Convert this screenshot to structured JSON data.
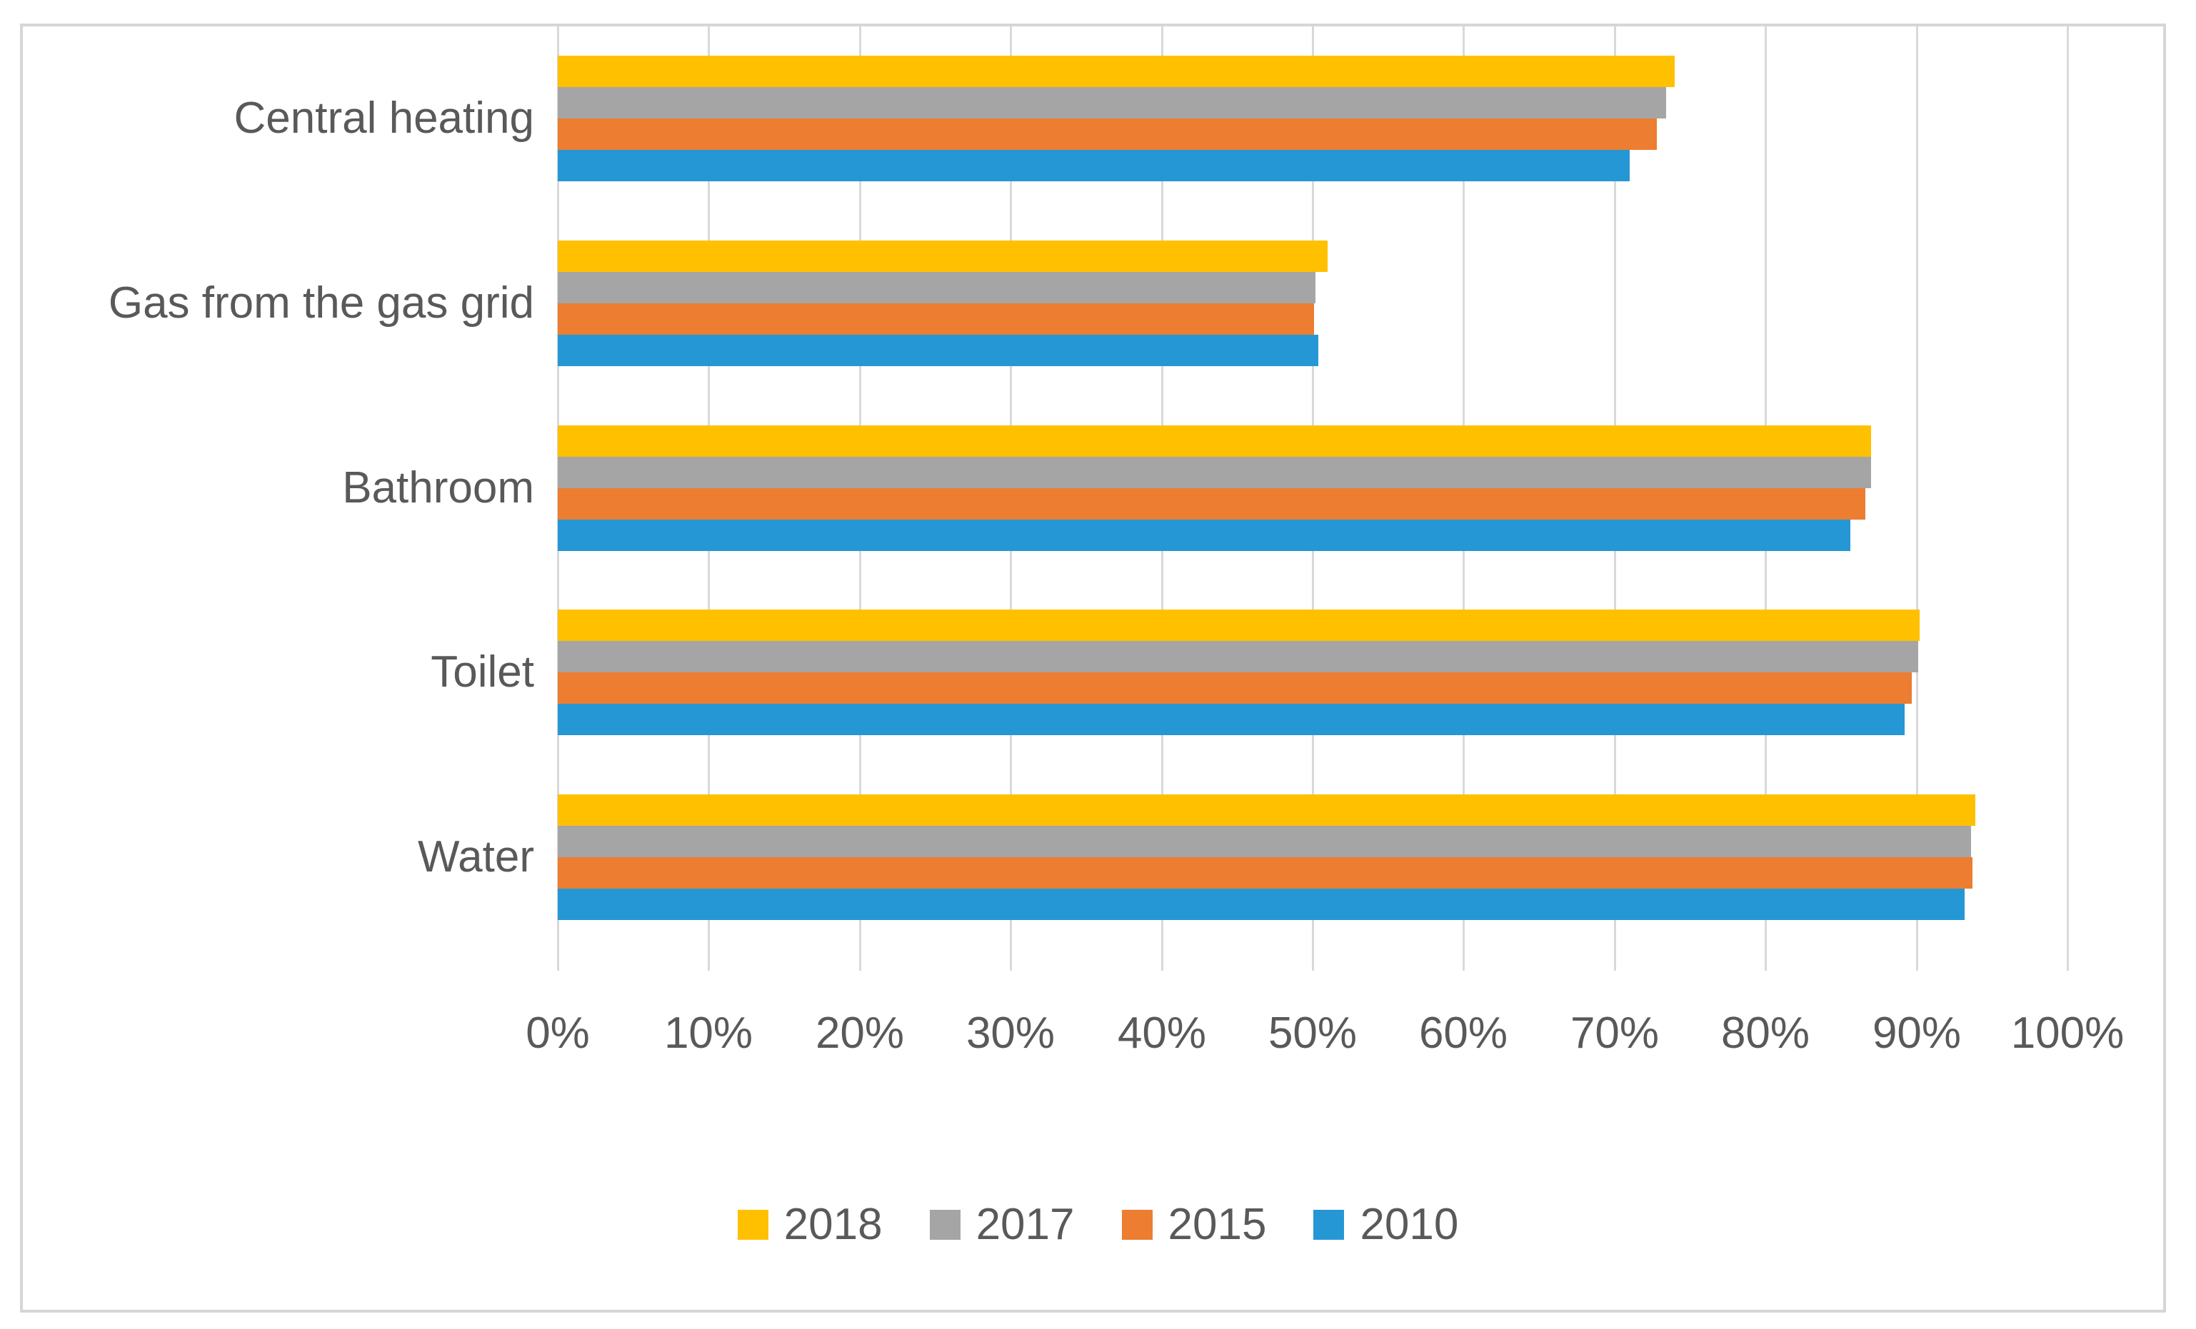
{
  "chart_data": {
    "type": "bar",
    "orientation": "horizontal",
    "title": "",
    "xlabel": "",
    "ylabel": "",
    "grid": true,
    "legend_position": "bottom",
    "categories": [
      "Central heating",
      "Gas from the gas grid",
      "Bathroom",
      "Toilet",
      "Water"
    ],
    "series": [
      {
        "name": "2018",
        "color": "#FFC000",
        "values": [
          74.0,
          51.0,
          87.0,
          90.2,
          93.9
        ]
      },
      {
        "name": "2017",
        "color": "#A5A5A5",
        "values": [
          73.4,
          50.2,
          87.0,
          90.1,
          93.6
        ]
      },
      {
        "name": "2015",
        "color": "#ED7D31",
        "values": [
          72.8,
          50.1,
          86.6,
          89.7,
          93.7
        ]
      },
      {
        "name": "2010",
        "color": "#2697D5",
        "values": [
          71.0,
          50.4,
          85.6,
          89.2,
          93.2
        ]
      }
    ],
    "x_axis": {
      "min": 0,
      "max": 100,
      "tick_step": 10,
      "tick_labels": [
        "0%",
        "10%",
        "20%",
        "30%",
        "40%",
        "50%",
        "60%",
        "70%",
        "80%",
        "90%",
        "100%"
      ]
    },
    "colors": {
      "gridline": "#d9d9d9",
      "frame_border": "#d6d6d6",
      "text": "#595959",
      "background": "#ffffff"
    }
  }
}
